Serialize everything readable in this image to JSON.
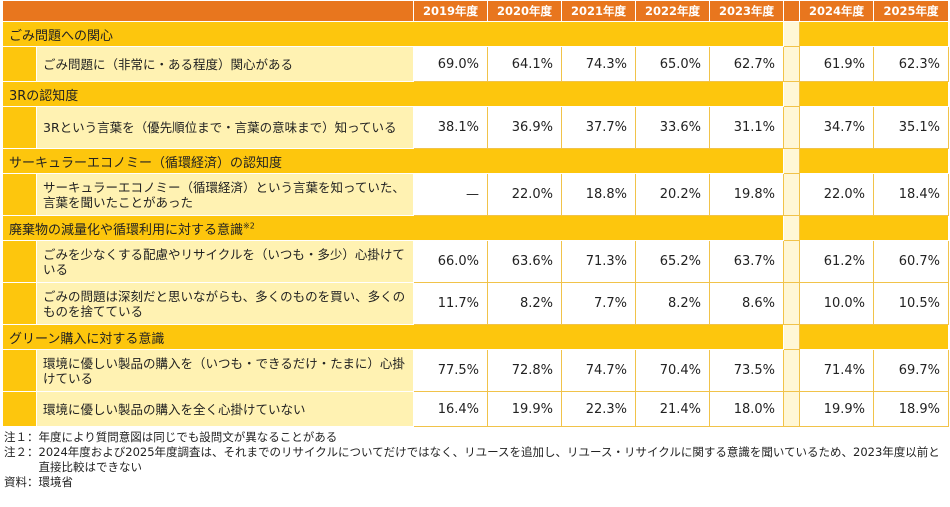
{
  "headers": [
    "2019年度",
    "2020年度",
    "2021年度",
    "2022年度",
    "2023年度",
    "2024年度",
    "2025年度"
  ],
  "categories": [
    {
      "title": "ごみ問題への関心",
      "title_sup": "",
      "rows": [
        {
          "label": "ごみ問題に（非常に・ある程度）関心がある",
          "values": [
            "69.0%",
            "64.1%",
            "74.3%",
            "65.0%",
            "62.7%",
            "61.9%",
            "62.3%"
          ]
        }
      ]
    },
    {
      "title": "3Rの認知度",
      "title_sup": "",
      "rows": [
        {
          "label": "3Rという言葉を（優先順位まで・言葉の意味まで）知っている",
          "values": [
            "38.1%",
            "36.9%",
            "37.7%",
            "33.6%",
            "31.1%",
            "34.7%",
            "35.1%"
          ]
        }
      ]
    },
    {
      "title": "サーキュラーエコノミー（循環経済）の認知度",
      "title_sup": "",
      "rows": [
        {
          "label": "サーキュラーエコノミー（循環経済）という言葉を知っていた、言葉を聞いたことがあった",
          "values": [
            "—",
            "22.0%",
            "18.8%",
            "20.2%",
            "19.8%",
            "22.0%",
            "18.4%"
          ]
        }
      ]
    },
    {
      "title": "廃棄物の減量化や循環利用に対する意識",
      "title_sup": "※2",
      "rows": [
        {
          "label": "ごみを少なくする配慮やリサイクルを（いつも・多少）心掛けている",
          "values": [
            "66.0%",
            "63.6%",
            "71.3%",
            "65.2%",
            "63.7%",
            "61.2%",
            "60.7%"
          ]
        },
        {
          "label": "ごみの問題は深刻だと思いながらも、多くのものを買い、多くのものを捨てている",
          "values": [
            "11.7%",
            "8.2%",
            "7.7%",
            "8.2%",
            "8.6%",
            "10.0%",
            "10.5%"
          ]
        }
      ]
    },
    {
      "title": "グリーン購入に対する意識",
      "title_sup": "",
      "rows": [
        {
          "label": "環境に優しい製品の購入を（いつも・できるだけ・たまに）心掛けている",
          "values": [
            "77.5%",
            "72.8%",
            "74.7%",
            "70.4%",
            "73.5%",
            "71.4%",
            "69.7%"
          ]
        },
        {
          "label": "環境に優しい製品の購入を全く心掛けていない",
          "values": [
            "16.4%",
            "19.9%",
            "22.3%",
            "21.4%",
            "18.0%",
            "19.9%",
            "18.9%"
          ]
        }
      ]
    }
  ],
  "notes": [
    {
      "key": "注１：",
      "text": "年度により質問意図は同じでも設問文が異なることがある"
    },
    {
      "key": "注２：",
      "text": "2024年度および2025年度調査は、それまでのリサイクルについてだけではなく、リユースを追加し、リユース・リサイクルに関する意識を聞いているため、2023年度以前と直接比較はできない"
    },
    {
      "key": "資料：",
      "text": "環境省"
    }
  ],
  "colors": {
    "header": "#e8761e",
    "category": "#fdc60d",
    "label_bg": "#fff2b2",
    "gap": "#fff7d6"
  }
}
